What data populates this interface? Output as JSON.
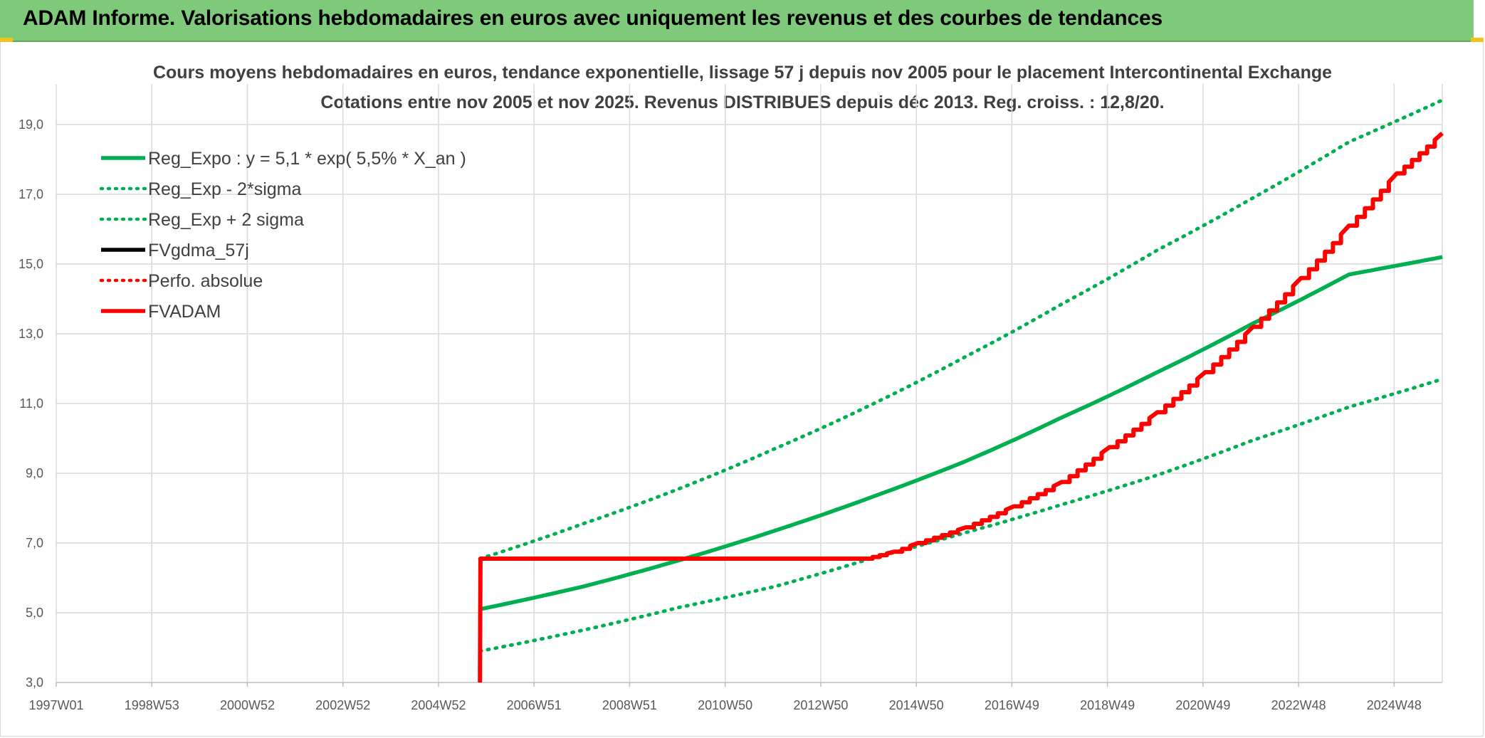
{
  "banner": {
    "title": "ADAM Informe. Valorisations hebdomadaires en euros avec uniquement les revenus et des courbes de tendances",
    "accent": "#7ec97a"
  },
  "chart_data": {
    "type": "line",
    "title": "Cours moyens hebdomadaires en euros, tendance exponentielle, lissage 57 j depuis nov 2005 pour le placement Intercontinental Exchange",
    "subtitle": "Cotations entre nov 2005 et nov 2025. Revenus DISTRIBUES depuis déc 2013. Reg. croiss. : 12,8/20.",
    "xlabel": "",
    "ylabel": "",
    "x_tick_labels": [
      "1997W01",
      "1998W53",
      "2000W52",
      "2002W52",
      "2004W52",
      "2006W51",
      "2008W51",
      "2010W50",
      "2012W50",
      "2014W50",
      "2016W49",
      "2018W49",
      "2020W49",
      "2022W48",
      "2024W48"
    ],
    "xlim": [
      1997.0,
      2025.95
    ],
    "y_tick_labels": [
      "3,0",
      "5,0",
      "7,0",
      "9,0",
      "11,0",
      "13,0",
      "15,0",
      "17,0",
      "19,0"
    ],
    "ylim": [
      3.0,
      20.0
    ],
    "grid": true,
    "legend_position": "top-left",
    "series": [
      {
        "name": "Reg_Expo : y = 5,1 * exp( 5,5% *  X_an )",
        "color": "#00b050",
        "style": "solid",
        "x": [
          2005.85,
          2008,
          2010,
          2012,
          2014,
          2016,
          2018,
          2020,
          2022,
          2024,
          2025.95
        ],
        "y": [
          5.1,
          5.75,
          6.5,
          7.35,
          8.3,
          9.35,
          10.6,
          11.9,
          13.3,
          14.7,
          15.2
        ]
      },
      {
        "name": "Reg_Exp - 2*sigma",
        "color": "#00b050",
        "style": "dotted",
        "x": [
          2005.85,
          2008,
          2010,
          2012,
          2014,
          2016,
          2018,
          2020,
          2022,
          2024,
          2025.95
        ],
        "y": [
          3.9,
          4.5,
          5.15,
          5.75,
          6.55,
          7.3,
          8.1,
          8.95,
          9.95,
          10.9,
          11.7
        ]
      },
      {
        "name": "Reg_Exp + 2 sigma",
        "color": "#00b050",
        "style": "dotted",
        "x": [
          2005.85,
          2008,
          2010,
          2012,
          2014,
          2016,
          2018,
          2020,
          2022,
          2024,
          2025.95
        ],
        "y": [
          6.55,
          7.55,
          8.55,
          9.7,
          10.95,
          12.35,
          13.85,
          15.4,
          16.9,
          18.5,
          19.7
        ]
      },
      {
        "name": "FVgdma_57j",
        "color": "#000000",
        "style": "solid",
        "x": [],
        "y": []
      },
      {
        "name": "Perfo. absolue",
        "color": "#ff0000",
        "style": "dotted",
        "x": [],
        "y": []
      },
      {
        "name": "FVADAM",
        "color": "#ff0000",
        "style": "solid",
        "x": [
          2005.85,
          2005.86,
          2013.9,
          2014.5,
          2015,
          2016,
          2017,
          2018,
          2019,
          2020,
          2021,
          2022,
          2023,
          2024,
          2025,
          2025.95
        ],
        "y": [
          3.0,
          6.55,
          6.55,
          6.75,
          7.0,
          7.45,
          8.05,
          8.75,
          9.75,
          10.75,
          11.9,
          13.2,
          14.6,
          16.1,
          17.6,
          18.75
        ]
      }
    ]
  }
}
